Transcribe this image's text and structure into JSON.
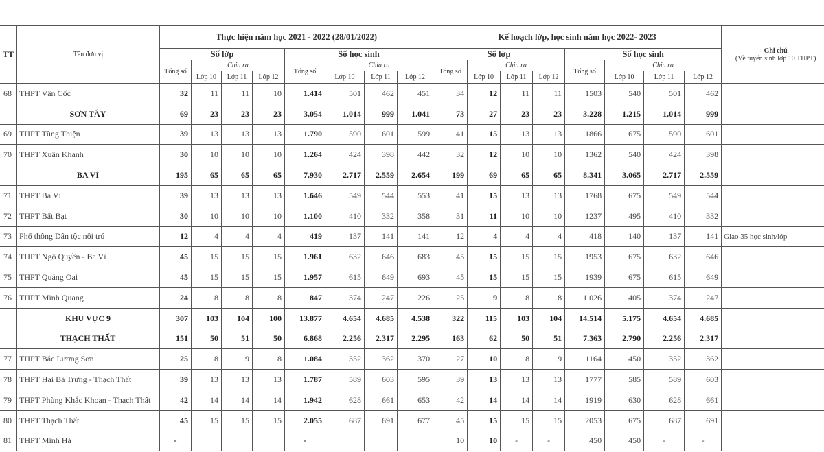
{
  "header": {
    "tt": "TT",
    "name": "Tên đơn vị",
    "period1": "Thực hiện năm học 2021 - 2022 (28/01/2022)",
    "period2": "Kế hoạch lớp, học sinh năm học 2022- 2023",
    "so_lop": "Số lớp",
    "so_hoc_sinh": "Số học sinh",
    "tong_so": "Tổng số",
    "chia_ra": "Chia ra",
    "lop10": "Lớp 10",
    "lop11": "Lớp 11",
    "lop12": "Lớp 12",
    "ghi_chu": "Ghi chú",
    "ghi_chu_sub": "(Về tuyển sinh lớp 10 THPT)"
  },
  "rows": [
    {
      "tt": "68",
      "name": "THPT Vân Cốc",
      "group": false,
      "v": [
        "32",
        "11",
        "11",
        "10",
        "1.414",
        "501",
        "462",
        "451",
        "34",
        "12",
        "11",
        "11",
        "1503",
        "540",
        "501",
        "462"
      ],
      "note": ""
    },
    {
      "tt": "",
      "name": "SƠN TÂY",
      "group": true,
      "v": [
        "69",
        "23",
        "23",
        "23",
        "3.054",
        "1.014",
        "999",
        "1.041",
        "73",
        "27",
        "23",
        "23",
        "3.228",
        "1.215",
        "1.014",
        "999"
      ],
      "note": ""
    },
    {
      "tt": "69",
      "name": "THPT Tùng Thiện",
      "group": false,
      "v": [
        "39",
        "13",
        "13",
        "13",
        "1.790",
        "590",
        "601",
        "599",
        "41",
        "15",
        "13",
        "13",
        "1866",
        "675",
        "590",
        "601"
      ],
      "note": ""
    },
    {
      "tt": "70",
      "name": "THPT Xuân Khanh",
      "group": false,
      "v": [
        "30",
        "10",
        "10",
        "10",
        "1.264",
        "424",
        "398",
        "442",
        "32",
        "12",
        "10",
        "10",
        "1362",
        "540",
        "424",
        "398"
      ],
      "note": ""
    },
    {
      "tt": "",
      "name": "BA VÌ",
      "group": true,
      "v": [
        "195",
        "65",
        "65",
        "65",
        "7.930",
        "2.717",
        "2.559",
        "2.654",
        "199",
        "69",
        "65",
        "65",
        "8.341",
        "3.065",
        "2.717",
        "2.559"
      ],
      "note": ""
    },
    {
      "tt": "71",
      "name": "THPT Ba Vì",
      "group": false,
      "v": [
        "39",
        "13",
        "13",
        "13",
        "1.646",
        "549",
        "544",
        "553",
        "41",
        "15",
        "13",
        "13",
        "1768",
        "675",
        "549",
        "544"
      ],
      "note": ""
    },
    {
      "tt": "72",
      "name": "THPT Bất Bạt",
      "group": false,
      "v": [
        "30",
        "10",
        "10",
        "10",
        "1.100",
        "410",
        "332",
        "358",
        "31",
        "11",
        "10",
        "10",
        "1237",
        "495",
        "410",
        "332"
      ],
      "note": ""
    },
    {
      "tt": "73",
      "name": "Phổ thông Dân tộc nội trú",
      "group": false,
      "v": [
        "12",
        "4",
        "4",
        "4",
        "419",
        "137",
        "141",
        "141",
        "12",
        "4",
        "4",
        "4",
        "418",
        "140",
        "137",
        "141"
      ],
      "note": "Giao 35 học sinh/lớp"
    },
    {
      "tt": "74",
      "name": "THPT Ngô Quyền - Ba Vì",
      "group": false,
      "v": [
        "45",
        "15",
        "15",
        "15",
        "1.961",
        "632",
        "646",
        "683",
        "45",
        "15",
        "15",
        "15",
        "1953",
        "675",
        "632",
        "646"
      ],
      "note": ""
    },
    {
      "tt": "75",
      "name": "THPT Quảng Oai",
      "group": false,
      "v": [
        "45",
        "15",
        "15",
        "15",
        "1.957",
        "615",
        "649",
        "693",
        "45",
        "15",
        "15",
        "15",
        "1939",
        "675",
        "615",
        "649"
      ],
      "note": ""
    },
    {
      "tt": "76",
      "name": "THPT Minh Quang",
      "group": false,
      "v": [
        "24",
        "8",
        "8",
        "8",
        "847",
        "374",
        "247",
        "226",
        "25",
        "9",
        "8",
        "8",
        "1.026",
        "405",
        "374",
        "247"
      ],
      "note": ""
    },
    {
      "tt": "",
      "name": "KHU VỰC 9",
      "group": true,
      "v": [
        "307",
        "103",
        "104",
        "100",
        "13.877",
        "4.654",
        "4.685",
        "4.538",
        "322",
        "115",
        "103",
        "104",
        "14.514",
        "5.175",
        "4.654",
        "4.685"
      ],
      "note": ""
    },
    {
      "tt": "",
      "name": "THẠCH THẤT",
      "group": true,
      "v": [
        "151",
        "50",
        "51",
        "50",
        "6.868",
        "2.256",
        "2.317",
        "2.295",
        "163",
        "62",
        "50",
        "51",
        "7.363",
        "2.790",
        "2.256",
        "2.317"
      ],
      "note": ""
    },
    {
      "tt": "77",
      "name": "THPT Bắc Lương Sơn",
      "group": false,
      "v": [
        "25",
        "8",
        "9",
        "8",
        "1.084",
        "352",
        "362",
        "370",
        "27",
        "10",
        "8",
        "9",
        "1164",
        "450",
        "352",
        "362"
      ],
      "note": ""
    },
    {
      "tt": "78",
      "name": "THPT Hai Bà Trưng - Thạch Thất",
      "group": false,
      "v": [
        "39",
        "13",
        "13",
        "13",
        "1.787",
        "589",
        "603",
        "595",
        "39",
        "13",
        "13",
        "13",
        "1777",
        "585",
        "589",
        "603"
      ],
      "note": ""
    },
    {
      "tt": "79",
      "name": "THPT Phùng Khắc Khoan - Thạch Thất",
      "group": false,
      "v": [
        "42",
        "14",
        "14",
        "14",
        "1.942",
        "628",
        "661",
        "653",
        "42",
        "14",
        "14",
        "14",
        "1919",
        "630",
        "628",
        "661"
      ],
      "note": ""
    },
    {
      "tt": "80",
      "name": "THPT Thạch Thất",
      "group": false,
      "v": [
        "45",
        "15",
        "15",
        "15",
        "2.055",
        "687",
        "691",
        "677",
        "45",
        "15",
        "15",
        "15",
        "2053",
        "675",
        "687",
        "691"
      ],
      "note": ""
    },
    {
      "tt": "81",
      "name": "THPT Minh Hà",
      "group": false,
      "v": [
        "-",
        "",
        "",
        "",
        "-",
        "",
        "",
        "",
        "10",
        "10",
        "-",
        "-",
        "450",
        "450",
        "-",
        "-"
      ],
      "note": ""
    }
  ]
}
